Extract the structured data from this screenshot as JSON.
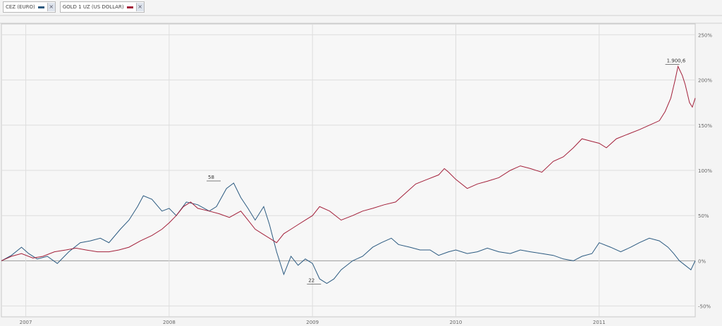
{
  "legend": [
    {
      "label": "CEZ (EURO)",
      "close_icon": "×"
    },
    {
      "label": "GOLD 1 UZ (US DOLLAR)",
      "close_icon": "×"
    }
  ],
  "chart_data": {
    "type": "line",
    "xlim": [
      2006.83,
      2011.67
    ],
    "ylim": [
      -62,
      262
    ],
    "x_ticks": [
      {
        "x": 2007.0,
        "label": "2007"
      },
      {
        "x": 2008.0,
        "label": "2008"
      },
      {
        "x": 2009.0,
        "label": "2009"
      },
      {
        "x": 2010.0,
        "label": "2010"
      },
      {
        "x": 2011.0,
        "label": "2011"
      }
    ],
    "y_ticks": [
      {
        "y": 250,
        "label": "250%"
      },
      {
        "y": 200,
        "label": "200%"
      },
      {
        "y": 150,
        "label": "150%"
      },
      {
        "y": 100,
        "label": "100%"
      },
      {
        "y": 50,
        "label": "50%"
      },
      {
        "y": 0,
        "label": "0%"
      },
      {
        "y": -50,
        "label": "-50%"
      }
    ],
    "grid": true,
    "series": [
      {
        "name": "CEZ (EURO)",
        "color": "#2b5a80",
        "x": [
          2006.83,
          2006.9,
          2006.97,
          2007.02,
          2007.08,
          2007.15,
          2007.22,
          2007.3,
          2007.38,
          2007.45,
          2007.52,
          2007.58,
          2007.66,
          2007.72,
          2007.78,
          2007.82,
          2007.88,
          2007.95,
          2008.0,
          2008.05,
          2008.12,
          2008.2,
          2008.28,
          2008.33,
          2008.4,
          2008.45,
          2008.5,
          2008.55,
          2008.6,
          2008.66,
          2008.7,
          2008.75,
          2008.8,
          2008.85,
          2008.9,
          2008.95,
          2009.0,
          2009.05,
          2009.1,
          2009.15,
          2009.2,
          2009.28,
          2009.35,
          2009.42,
          2009.48,
          2009.55,
          2009.6,
          2009.68,
          2009.75,
          2009.82,
          2009.88,
          2009.95,
          2010.0,
          2010.08,
          2010.15,
          2010.22,
          2010.3,
          2010.38,
          2010.45,
          2010.52,
          2010.6,
          2010.68,
          2010.75,
          2010.82,
          2010.88,
          2010.95,
          2011.0,
          2011.08,
          2011.15,
          2011.22,
          2011.28,
          2011.35,
          2011.42,
          2011.48,
          2011.52,
          2011.56,
          2011.6,
          2011.64,
          2011.67
        ],
        "y": [
          0,
          6,
          15,
          8,
          2,
          5,
          -3,
          10,
          20,
          22,
          25,
          20,
          35,
          45,
          60,
          72,
          68,
          55,
          58,
          50,
          65,
          62,
          55,
          60,
          80,
          86,
          70,
          58,
          45,
          60,
          40,
          10,
          -15,
          5,
          -5,
          2,
          -3,
          -20,
          -25,
          -20,
          -10,
          0,
          5,
          15,
          20,
          25,
          18,
          15,
          12,
          12,
          6,
          10,
          12,
          8,
          10,
          14,
          10,
          8,
          12,
          10,
          8,
          6,
          2,
          0,
          5,
          8,
          20,
          15,
          10,
          15,
          20,
          25,
          22,
          15,
          8,
          0,
          -5,
          -10,
          0
        ]
      },
      {
        "name": "GOLD 1 UZ (US DOLLAR)",
        "color": "#a3203a",
        "x": [
          2006.83,
          2006.9,
          2006.97,
          2007.05,
          2007.12,
          2007.2,
          2007.28,
          2007.35,
          2007.42,
          2007.5,
          2007.58,
          2007.65,
          2007.72,
          2007.8,
          2007.88,
          2007.95,
          2008.0,
          2008.05,
          2008.1,
          2008.15,
          2008.2,
          2008.28,
          2008.35,
          2008.42,
          2008.5,
          2008.55,
          2008.6,
          2008.65,
          2008.7,
          2008.75,
          2008.8,
          2008.85,
          2008.9,
          2008.95,
          2009.0,
          2009.05,
          2009.12,
          2009.2,
          2009.28,
          2009.35,
          2009.42,
          2009.5,
          2009.58,
          2009.65,
          2009.72,
          2009.8,
          2009.88,
          2009.92,
          2009.95,
          2010.0,
          2010.08,
          2010.15,
          2010.22,
          2010.3,
          2010.38,
          2010.45,
          2010.52,
          2010.6,
          2010.68,
          2010.75,
          2010.82,
          2010.88,
          2010.95,
          2011.0,
          2011.05,
          2011.12,
          2011.2,
          2011.28,
          2011.35,
          2011.42,
          2011.46,
          2011.5,
          2011.53,
          2011.55,
          2011.58,
          2011.6,
          2011.63,
          2011.65,
          2011.67
        ],
        "y": [
          0,
          5,
          8,
          3,
          5,
          10,
          12,
          14,
          12,
          10,
          10,
          12,
          15,
          22,
          28,
          35,
          42,
          50,
          60,
          65,
          58,
          55,
          52,
          48,
          55,
          45,
          35,
          30,
          25,
          20,
          30,
          35,
          40,
          45,
          50,
          60,
          55,
          45,
          50,
          55,
          58,
          62,
          65,
          75,
          85,
          90,
          95,
          102,
          98,
          90,
          80,
          85,
          88,
          92,
          100,
          105,
          102,
          98,
          110,
          115,
          125,
          135,
          132,
          130,
          125,
          135,
          140,
          145,
          150,
          155,
          165,
          180,
          200,
          215,
          205,
          195,
          175,
          170,
          180
        ]
      }
    ],
    "annotations": [
      {
        "x": 2008.35,
        "y": 86,
        "label": "58"
      },
      {
        "x": 2009.05,
        "y": -28,
        "label": "22"
      },
      {
        "x": 2011.55,
        "y": 215,
        "label": "1.900,6"
      }
    ]
  }
}
